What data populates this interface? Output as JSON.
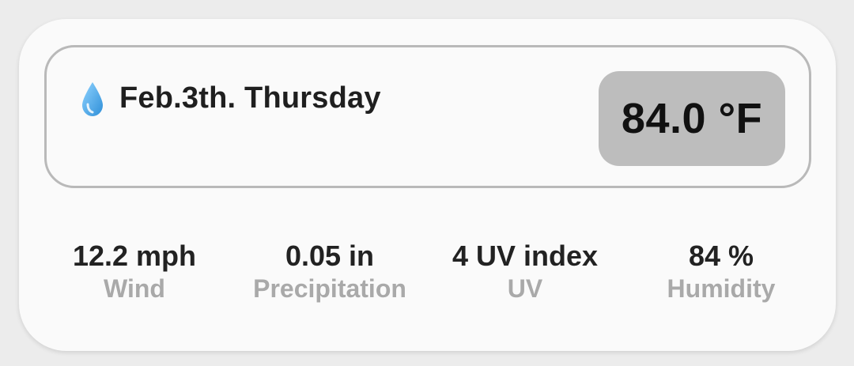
{
  "weather_card": {
    "date": "Feb.3th. Thursday",
    "temperature": "84.0 °F",
    "icon": "water-drop-icon",
    "colors": {
      "card_background": "#fafafa",
      "panel_border": "#b9b9b9",
      "temperature_badge": "#bdbdbd",
      "label_text": "#a9a9a9",
      "drop_icon": "#4aa8e8"
    },
    "stats": [
      {
        "value": "12.2 mph",
        "label": "Wind"
      },
      {
        "value": "0.05 in",
        "label": "Precipitation"
      },
      {
        "value": "4 UV index",
        "label": "UV"
      },
      {
        "value": "84 %",
        "label": "Humidity"
      }
    ]
  }
}
